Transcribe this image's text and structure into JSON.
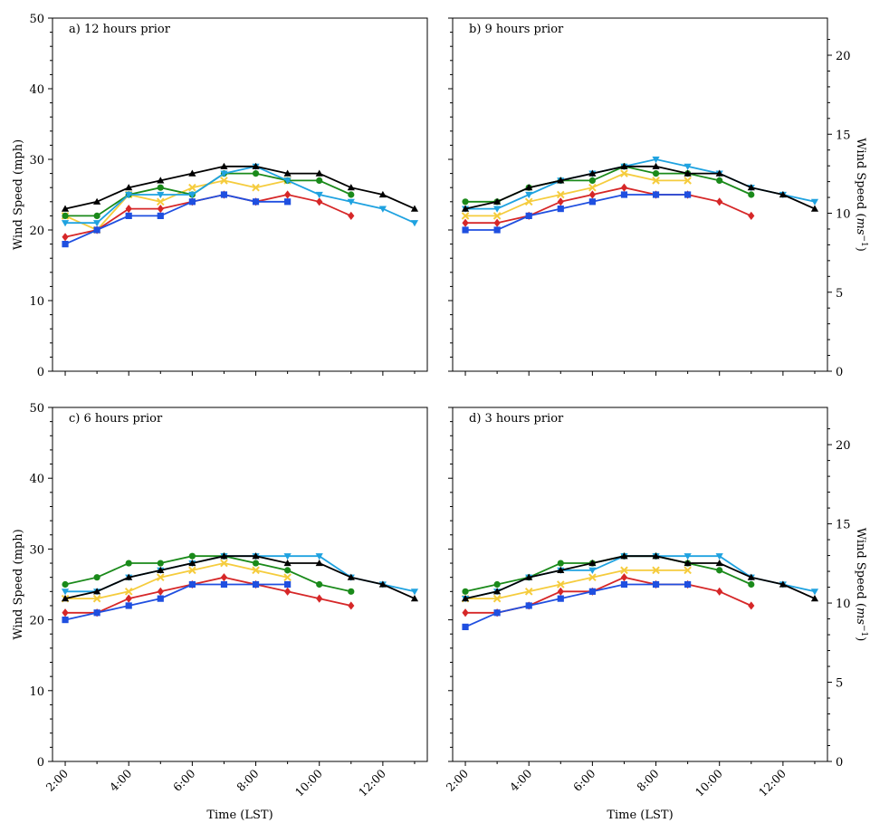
{
  "chart_data": [
    {
      "type": "line",
      "title": "a) 12 hours prior",
      "x": [
        2,
        3,
        4,
        5,
        6,
        7,
        8,
        9,
        10,
        11,
        12,
        13
      ],
      "series": [
        {
          "color": "#000000",
          "marker": "triangle-up",
          "values": [
            23,
            24,
            26,
            27,
            28,
            29,
            29,
            28,
            28,
            26,
            25,
            23
          ]
        },
        {
          "color": "#1fa2e0",
          "marker": "triangle-down",
          "values": [
            21,
            21,
            25,
            25,
            25,
            28,
            29,
            27,
            25,
            24,
            23,
            21
          ]
        },
        {
          "color": "#1a8a1a",
          "marker": "circle",
          "values": [
            22,
            22,
            25,
            26,
            25,
            28,
            28,
            27,
            27,
            25,
            null,
            null
          ]
        },
        {
          "color": "#f5cc3d",
          "marker": "x",
          "values": [
            22,
            20,
            25,
            24,
            26,
            27,
            26,
            27,
            null,
            null,
            null,
            null
          ]
        },
        {
          "color": "#d62728",
          "marker": "diamond",
          "values": [
            19,
            20,
            23,
            23,
            24,
            25,
            24,
            25,
            24,
            22,
            null,
            null
          ]
        },
        {
          "color": "#1f4fe0",
          "marker": "square",
          "values": [
            18,
            20,
            22,
            22,
            24,
            25,
            24,
            24,
            null,
            null,
            null,
            null
          ]
        }
      ]
    },
    {
      "type": "line",
      "title": "b) 9 hours prior",
      "x": [
        2,
        3,
        4,
        5,
        6,
        7,
        8,
        9,
        10,
        11,
        12,
        13
      ],
      "series": [
        {
          "color": "#000000",
          "marker": "triangle-up",
          "values": [
            23,
            24,
            26,
            27,
            28,
            29,
            29,
            28,
            28,
            26,
            25,
            23
          ]
        },
        {
          "color": "#1fa2e0",
          "marker": "triangle-down",
          "values": [
            23,
            23,
            25,
            27,
            28,
            29,
            30,
            29,
            28,
            26,
            25,
            24
          ]
        },
        {
          "color": "#1a8a1a",
          "marker": "circle",
          "values": [
            24,
            24,
            26,
            27,
            27,
            29,
            28,
            28,
            27,
            25,
            null,
            null
          ]
        },
        {
          "color": "#f5cc3d",
          "marker": "x",
          "values": [
            22,
            22,
            24,
            25,
            26,
            28,
            27,
            27,
            null,
            null,
            null,
            null
          ]
        },
        {
          "color": "#d62728",
          "marker": "diamond",
          "values": [
            21,
            21,
            22,
            24,
            25,
            26,
            25,
            25,
            24,
            22,
            null,
            null
          ]
        },
        {
          "color": "#1f4fe0",
          "marker": "square",
          "values": [
            20,
            20,
            22,
            23,
            24,
            25,
            25,
            25,
            null,
            null,
            null,
            null
          ]
        }
      ]
    },
    {
      "type": "line",
      "title": "c) 6 hours prior",
      "x": [
        2,
        3,
        4,
        5,
        6,
        7,
        8,
        9,
        10,
        11,
        12,
        13
      ],
      "series": [
        {
          "color": "#000000",
          "marker": "triangle-up",
          "values": [
            23,
            24,
            26,
            27,
            28,
            29,
            29,
            28,
            28,
            26,
            25,
            23
          ]
        },
        {
          "color": "#1fa2e0",
          "marker": "triangle-down",
          "values": [
            24,
            24,
            26,
            27,
            28,
            29,
            29,
            29,
            29,
            26,
            25,
            24
          ]
        },
        {
          "color": "#1a8a1a",
          "marker": "circle",
          "values": [
            25,
            26,
            28,
            28,
            29,
            29,
            28,
            27,
            25,
            24,
            null,
            null
          ]
        },
        {
          "color": "#f5cc3d",
          "marker": "x",
          "values": [
            23,
            23,
            24,
            26,
            27,
            28,
            27,
            26,
            null,
            null,
            null,
            null
          ]
        },
        {
          "color": "#d62728",
          "marker": "diamond",
          "values": [
            21,
            21,
            23,
            24,
            25,
            26,
            25,
            24,
            23,
            22,
            null,
            null
          ]
        },
        {
          "color": "#1f4fe0",
          "marker": "square",
          "values": [
            20,
            21,
            22,
            23,
            25,
            25,
            25,
            25,
            null,
            null,
            null,
            null
          ]
        }
      ]
    },
    {
      "type": "line",
      "title": "d) 3 hours prior",
      "x": [
        2,
        3,
        4,
        5,
        6,
        7,
        8,
        9,
        10,
        11,
        12,
        13
      ],
      "series": [
        {
          "color": "#000000",
          "marker": "triangle-up",
          "values": [
            23,
            24,
            26,
            27,
            28,
            29,
            29,
            28,
            28,
            26,
            25,
            23
          ]
        },
        {
          "color": "#1fa2e0",
          "marker": "triangle-down",
          "values": [
            23,
            24,
            26,
            27,
            27,
            29,
            29,
            29,
            29,
            26,
            25,
            24
          ]
        },
        {
          "color": "#1a8a1a",
          "marker": "circle",
          "values": [
            24,
            25,
            26,
            28,
            28,
            29,
            29,
            28,
            27,
            25,
            null,
            null
          ]
        },
        {
          "color": "#f5cc3d",
          "marker": "x",
          "values": [
            23,
            23,
            24,
            25,
            26,
            27,
            27,
            27,
            null,
            null,
            null,
            null
          ]
        },
        {
          "color": "#d62728",
          "marker": "diamond",
          "values": [
            21,
            21,
            22,
            24,
            24,
            26,
            25,
            25,
            24,
            22,
            null,
            null
          ]
        },
        {
          "color": "#1f4fe0",
          "marker": "square",
          "values": [
            19,
            21,
            22,
            23,
            24,
            25,
            25,
            25,
            null,
            null,
            null,
            null
          ]
        }
      ]
    }
  ],
  "axes": {
    "ylabel_left": "Wind Speed (mph)",
    "ylabel_right": "Wind Speed (",
    "ylabel_right_unit_base": "ms",
    "ylabel_right_unit_exp": "−1",
    "ylabel_right_close": ")",
    "xlabel": "Time (LST)",
    "ylim_mph": [
      0,
      50
    ],
    "ylim_ms": [
      0,
      22.35
    ],
    "xlim": [
      1.6,
      13.4
    ],
    "left_ticks": [
      0,
      10,
      20,
      30,
      40,
      50
    ],
    "right_ticks": [
      0,
      5,
      10,
      15,
      20
    ],
    "xtick_values": [
      2,
      4,
      6,
      8,
      10,
      12
    ],
    "xtick_labels": [
      "2:00",
      "4:00",
      "6:00",
      "8:00",
      "10:00",
      "12:00"
    ]
  }
}
